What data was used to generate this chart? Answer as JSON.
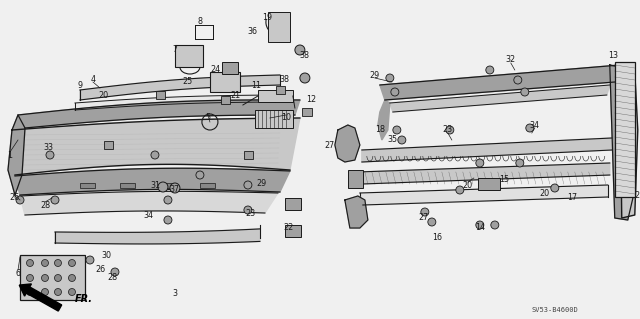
{
  "bg_color": "#f0f0f0",
  "diagram_code": "SV53-B4600D",
  "front_label": "FR.",
  "fig_width": 6.4,
  "fig_height": 3.19,
  "gray_light": "#c8c8c8",
  "gray_mid": "#a0a0a0",
  "gray_dark": "#707070",
  "line_color": "#1a1a1a",
  "label_fontsize": 5.8,
  "label_color": "#1a1a1a"
}
